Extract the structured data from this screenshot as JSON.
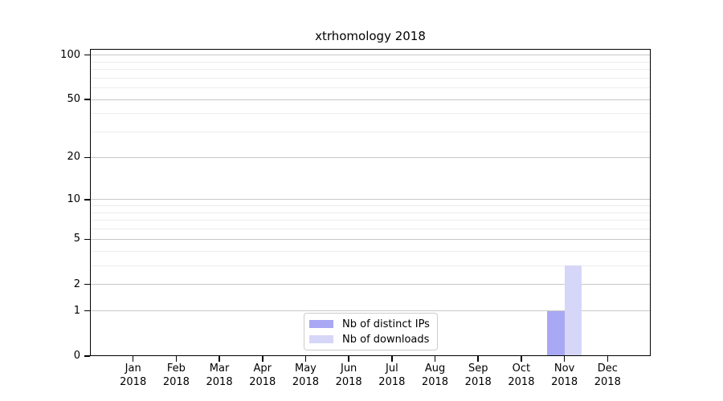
{
  "chart_data": {
    "type": "bar",
    "title": "xtrhomology 2018",
    "categories": [
      "Jan 2018",
      "Feb 2018",
      "Mar 2018",
      "Apr 2018",
      "May 2018",
      "Jun 2018",
      "Jul 2018",
      "Aug 2018",
      "Sep 2018",
      "Oct 2018",
      "Nov 2018",
      "Dec 2018"
    ],
    "series": [
      {
        "name": "Nb of distinct IPs",
        "color": "#a8a8f4",
        "values": [
          0,
          0,
          0,
          0,
          0,
          0,
          0,
          0,
          0,
          0,
          1,
          0
        ]
      },
      {
        "name": "Nb of downloads",
        "color": "#d6d6f8",
        "values": [
          0,
          0,
          0,
          0,
          0,
          0,
          0,
          0,
          0,
          0,
          3,
          0
        ]
      }
    ],
    "xlabel": "",
    "ylabel": "",
    "y_scale": "log1p",
    "ylim": [
      0,
      110
    ],
    "y_ticks": [
      0,
      1,
      2,
      5,
      10,
      20,
      50,
      100
    ],
    "y_minor_gridlines": [
      3,
      4,
      6,
      7,
      8,
      9,
      30,
      40,
      60,
      70,
      80,
      90
    ],
    "grid": "horizontal",
    "legend_position": "lower-center"
  },
  "colors": {
    "axis": "#000000",
    "grid_major": "#c8c8c8",
    "grid_minor": "#ececec",
    "legend_border": "#cccccc",
    "text": "#000000",
    "background": "#ffffff"
  }
}
